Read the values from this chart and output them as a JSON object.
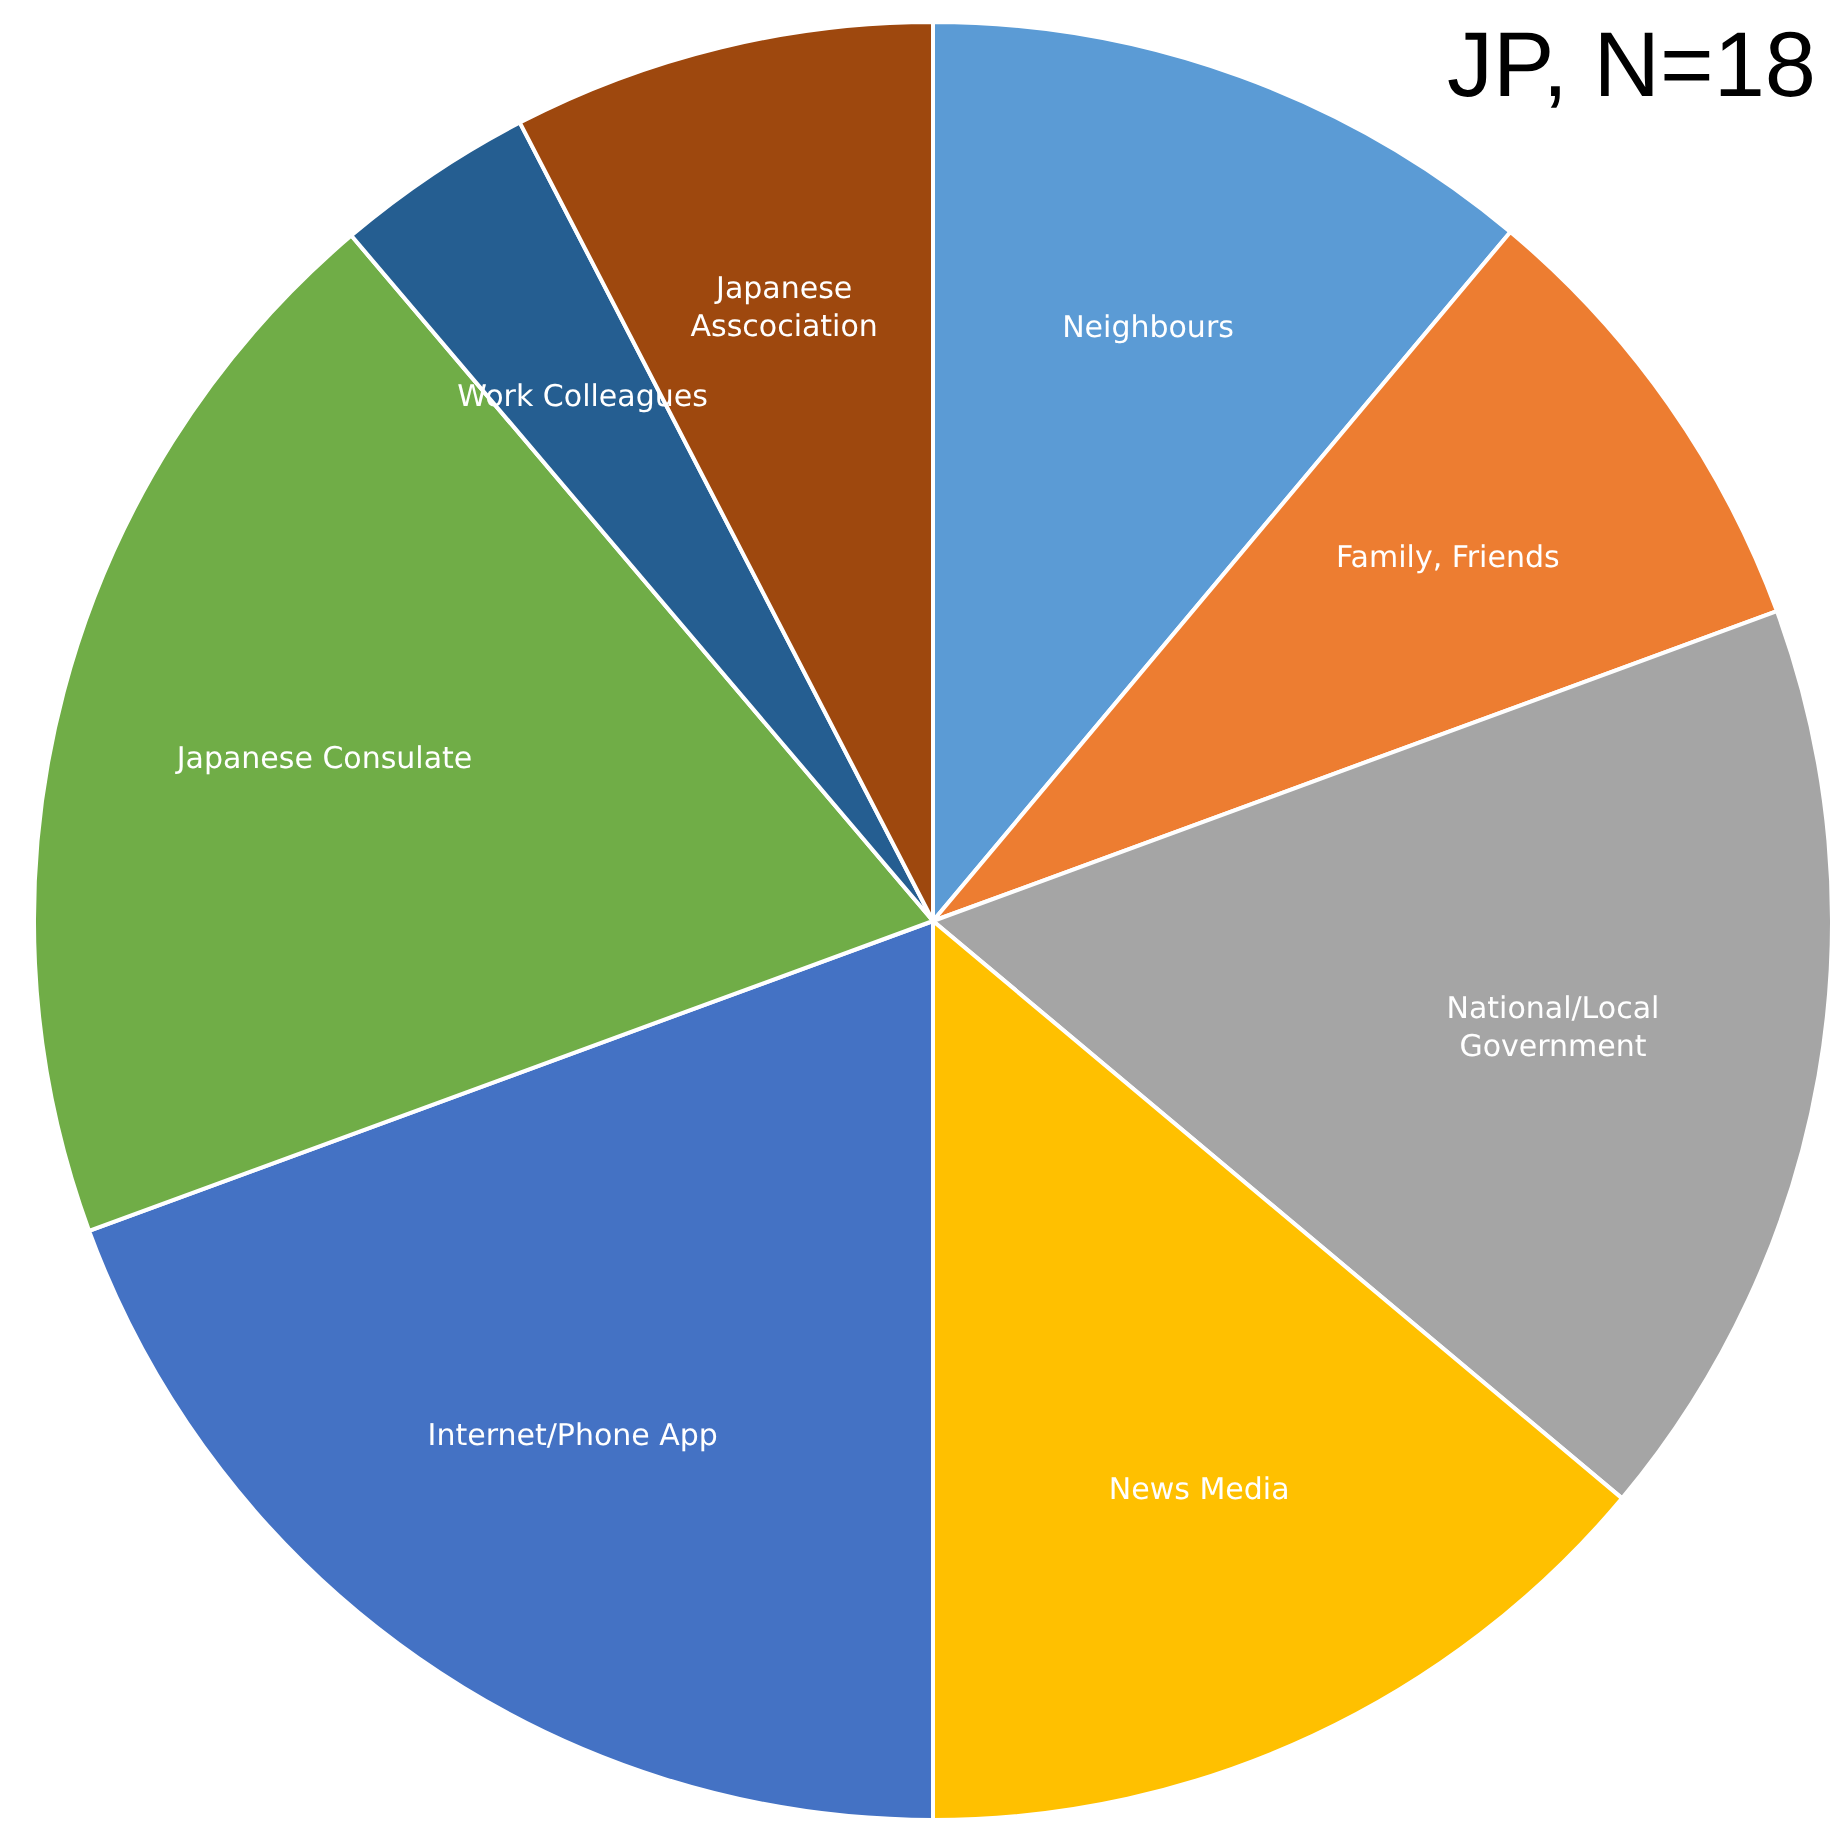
{
  "chart_data": {
    "type": "pie",
    "title": "JP, N=18",
    "categories": [
      "Neighbours",
      "Family, Friends",
      "National/Local Government",
      "News Media",
      "Internet/Phone App",
      "Japanese Consulate",
      "Work Colleagues",
      "Japanese Asscociation"
    ],
    "values": [
      11.1,
      8.3,
      16.7,
      13.9,
      19.4,
      19.4,
      3.6,
      7.6
    ],
    "colors": [
      "#5b9bd5",
      "#ed7d31",
      "#a5a5a5",
      "#ffc000",
      "#4472c4",
      "#70ad47",
      "#255e91",
      "#9e480e"
    ],
    "legend": false
  }
}
